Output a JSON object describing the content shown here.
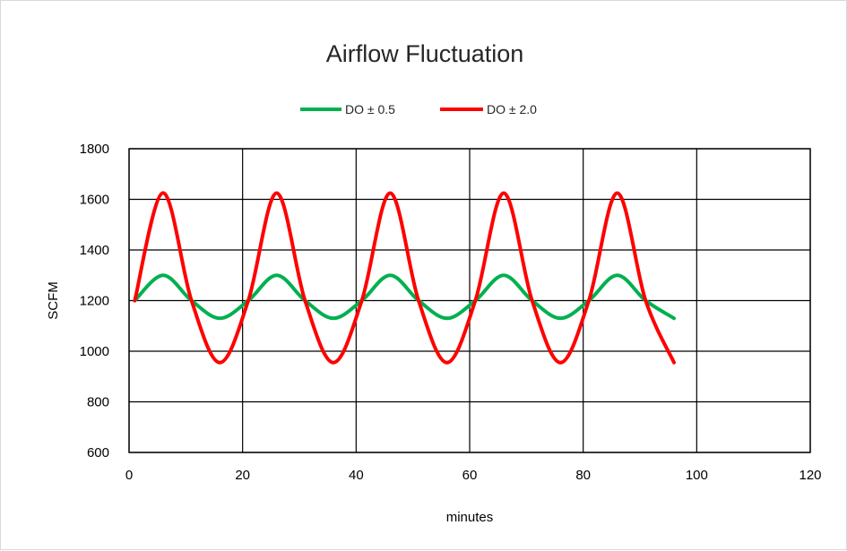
{
  "chart_data": {
    "type": "line",
    "title": "Airflow Fluctuation",
    "xlabel": "minutes",
    "ylabel": "SCFM",
    "xlim": [
      0,
      120
    ],
    "ylim": [
      600,
      1800
    ],
    "xticks": [
      0,
      20,
      40,
      60,
      80,
      100,
      120
    ],
    "yticks": [
      600,
      800,
      1000,
      1200,
      1400,
      1600,
      1800
    ],
    "grid": true,
    "legend_position": "top",
    "series": [
      {
        "name": "DO ± 0.5",
        "color": "#00b050",
        "x": [
          1,
          6,
          11,
          16,
          21,
          26,
          31,
          36,
          41,
          46,
          51,
          56,
          61,
          66,
          71,
          76,
          81,
          86,
          91,
          96
        ],
        "y": [
          1200,
          1300,
          1200,
          1130,
          1200,
          1300,
          1200,
          1130,
          1200,
          1300,
          1200,
          1130,
          1200,
          1300,
          1200,
          1130,
          1200,
          1300,
          1200,
          1130
        ]
      },
      {
        "name": "DO ± 2.0",
        "color": "#ff0000",
        "x": [
          1,
          6,
          11,
          16,
          21,
          26,
          31,
          36,
          41,
          46,
          51,
          56,
          61,
          66,
          71,
          76,
          81,
          86,
          91,
          96
        ],
        "y": [
          1200,
          1625,
          1200,
          955,
          1200,
          1625,
          1200,
          955,
          1200,
          1625,
          1200,
          955,
          1200,
          1625,
          1200,
          955,
          1200,
          1625,
          1200,
          955
        ]
      }
    ]
  }
}
